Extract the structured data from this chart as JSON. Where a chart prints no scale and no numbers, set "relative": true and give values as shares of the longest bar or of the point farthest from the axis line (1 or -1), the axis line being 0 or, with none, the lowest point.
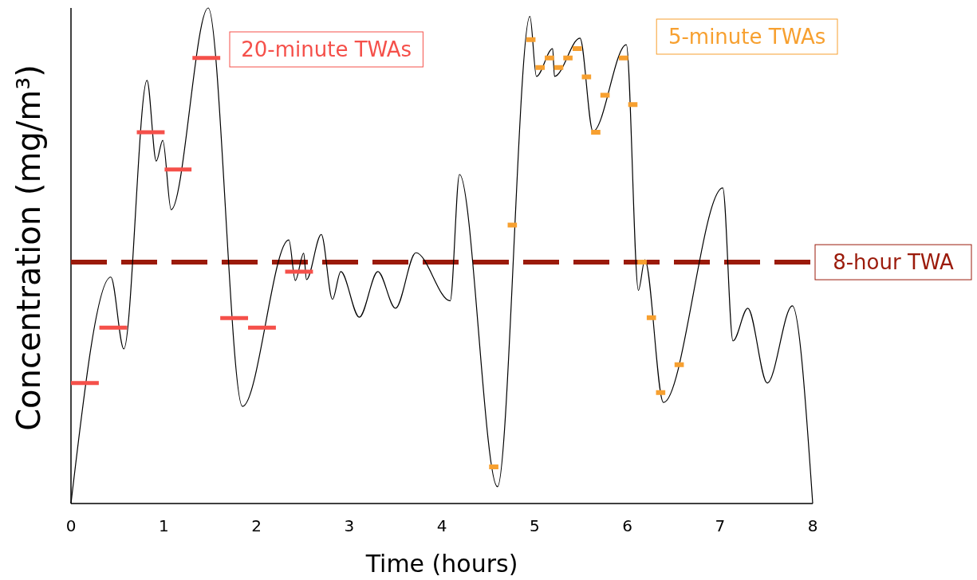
{
  "chart_data": {
    "type": "line",
    "xlabel": "Time (hours)",
    "ylabel": "Concentration (mg/m³)",
    "relative": true,
    "xlim": [
      0,
      8
    ],
    "xticks": [
      0,
      1,
      2,
      3,
      4,
      5,
      6,
      7,
      8
    ],
    "grid": false,
    "legend": "top",
    "series": [
      {
        "color": "#000000",
        "x": [
          0,
          0.43,
          0.57,
          0.82,
          0.92,
          0.99,
          1.08,
          1.48,
          1.85,
          2.35,
          2.42,
          2.51,
          2.54,
          2.7,
          2.82,
          2.91,
          3.11,
          3.31,
          3.5,
          3.72,
          4.09,
          4.19,
          4.6,
          4.95,
          5.02,
          5.195,
          5.215,
          5.49,
          5.63,
          5.99,
          6.12,
          6.19,
          6.39,
          7.03,
          7.14,
          7.3,
          7.51,
          7.78,
          8
        ],
        "values": [
          0,
          0.457,
          0.312,
          0.854,
          0.691,
          0.733,
          0.593,
          1,
          0.196,
          0.532,
          0.45,
          0.505,
          0.452,
          0.543,
          0.412,
          0.468,
          0.376,
          0.468,
          0.394,
          0.506,
          0.409,
          0.664,
          0.034,
          0.983,
          0.862,
          0.918,
          0.862,
          0.939,
          0.751,
          0.926,
          0.43,
          0.492,
          0.204,
          0.637,
          0.328,
          0.394,
          0.243,
          0.399,
          0
        ]
      },
      {
        "name": "20-minute TWAs",
        "color": "#f5504a",
        "x": [
          0,
          0.3,
          0.306,
          0.606,
          0.71,
          1.01,
          1.01,
          1.3,
          1.31,
          1.61,
          1.61,
          1.91,
          1.91,
          2.21,
          2.31,
          2.61
        ],
        "values": [
          0.243,
          0.243,
          0.355,
          0.355,
          0.749,
          0.749,
          0.674,
          0.674,
          0.899,
          0.899,
          0.374,
          0.374,
          0.355,
          0.355,
          0.468,
          0.468
        ]
      },
      {
        "name": "5-minute TWAs",
        "color": "#f7a030",
        "x": [
          4.51,
          4.61,
          4.71,
          4.81,
          4.91,
          5.01,
          5.01,
          5.11,
          5.11,
          5.21,
          5.21,
          5.31,
          5.31,
          5.41,
          5.41,
          5.51,
          5.51,
          5.61,
          5.61,
          5.71,
          5.71,
          5.81,
          5.91,
          6.01,
          6.01,
          6.11,
          6.11,
          6.21,
          6.21,
          6.31,
          6.31,
          6.41,
          6.51,
          6.61
        ],
        "values": [
          0.074,
          0.074,
          0.562,
          0.562,
          0.936,
          0.936,
          0.88,
          0.88,
          0.899,
          0.899,
          0.88,
          0.88,
          0.899,
          0.899,
          0.918,
          0.918,
          0.861,
          0.861,
          0.749,
          0.749,
          0.824,
          0.824,
          0.899,
          0.899,
          0.805,
          0.805,
          0.487,
          0.487,
          0.375,
          0.375,
          0.224,
          0.224,
          0.28,
          0.28
        ]
      }
    ],
    "ref_lines": [
      {
        "axis": "y",
        "value": 0.487,
        "label": "8-hour TWA",
        "color": "#9b1a0a",
        "line_style": "dashed"
      }
    ]
  }
}
